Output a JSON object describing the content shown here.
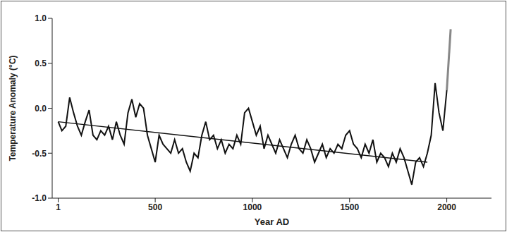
{
  "chart_data": {
    "type": "line",
    "x_label": "Year AD",
    "y_label": "Temperature Anomaly (°C)",
    "xlim": [
      -30,
      2230
    ],
    "xticks": [
      1,
      500,
      1000,
      1500,
      2000
    ],
    "ylim": [
      -1,
      1
    ],
    "yticks": [
      {
        "value": -1,
        "label": "-1.0"
      },
      -0.5,
      {
        "value": 0,
        "label": "0.0"
      },
      0.5,
      {
        "value": 1,
        "label": "1.0"
      }
    ],
    "grid": false,
    "series": [
      {
        "color": "#111111",
        "x": [
          1,
          20,
          40,
          60,
          80,
          100,
          120,
          140,
          160,
          180,
          200,
          220,
          240,
          260,
          280,
          300,
          320,
          340,
          360,
          380,
          400,
          420,
          440,
          460,
          480,
          500,
          520,
          540,
          560,
          580,
          600,
          620,
          640,
          660,
          680,
          700,
          720,
          740,
          760,
          780,
          800,
          820,
          840,
          860,
          880,
          900,
          920,
          940,
          960,
          980,
          1000,
          1020,
          1040,
          1060,
          1080,
          1100,
          1120,
          1140,
          1160,
          1180,
          1200,
          1220,
          1240,
          1260,
          1280,
          1300,
          1320,
          1340,
          1360,
          1380,
          1400,
          1420,
          1440,
          1460,
          1480,
          1500,
          1520,
          1540,
          1560,
          1580,
          1600,
          1620,
          1640,
          1660,
          1680,
          1700,
          1720,
          1740,
          1760,
          1780,
          1800,
          1820,
          1840,
          1860,
          1880,
          1900,
          1920,
          1940,
          1960,
          1980,
          2000
        ],
        "values": [
          -0.15,
          -0.25,
          -0.2,
          0.12,
          -0.05,
          -0.2,
          -0.3,
          -0.15,
          -0.02,
          -0.3,
          -0.35,
          -0.25,
          -0.3,
          -0.2,
          -0.35,
          -0.15,
          -0.3,
          -0.4,
          -0.05,
          0.1,
          -0.1,
          0.05,
          0.0,
          -0.3,
          -0.45,
          -0.6,
          -0.3,
          -0.4,
          -0.45,
          -0.5,
          -0.35,
          -0.5,
          -0.45,
          -0.6,
          -0.7,
          -0.5,
          -0.55,
          -0.3,
          -0.15,
          -0.35,
          -0.3,
          -0.45,
          -0.35,
          -0.5,
          -0.4,
          -0.45,
          -0.3,
          -0.4,
          -0.05,
          0.0,
          -0.15,
          -0.3,
          -0.2,
          -0.45,
          -0.3,
          -0.4,
          -0.5,
          -0.35,
          -0.45,
          -0.55,
          -0.4,
          -0.3,
          -0.45,
          -0.5,
          -0.35,
          -0.45,
          -0.6,
          -0.5,
          -0.4,
          -0.55,
          -0.45,
          -0.5,
          -0.4,
          -0.45,
          -0.3,
          -0.25,
          -0.4,
          -0.45,
          -0.55,
          -0.4,
          -0.5,
          -0.35,
          -0.6,
          -0.5,
          -0.55,
          -0.65,
          -0.5,
          -0.6,
          -0.45,
          -0.55,
          -0.7,
          -0.85,
          -0.6,
          -0.55,
          -0.65,
          -0.5,
          -0.3,
          0.28,
          -0.05,
          -0.25,
          0.2
        ]
      },
      {
        "color": "#888888",
        "x": [
          2000,
          2020
        ],
        "values": [
          0.2,
          0.88
        ]
      },
      {
        "color": "#111111",
        "x": [
          1,
          1900
        ],
        "values": [
          -0.15,
          -0.6
        ]
      }
    ]
  }
}
